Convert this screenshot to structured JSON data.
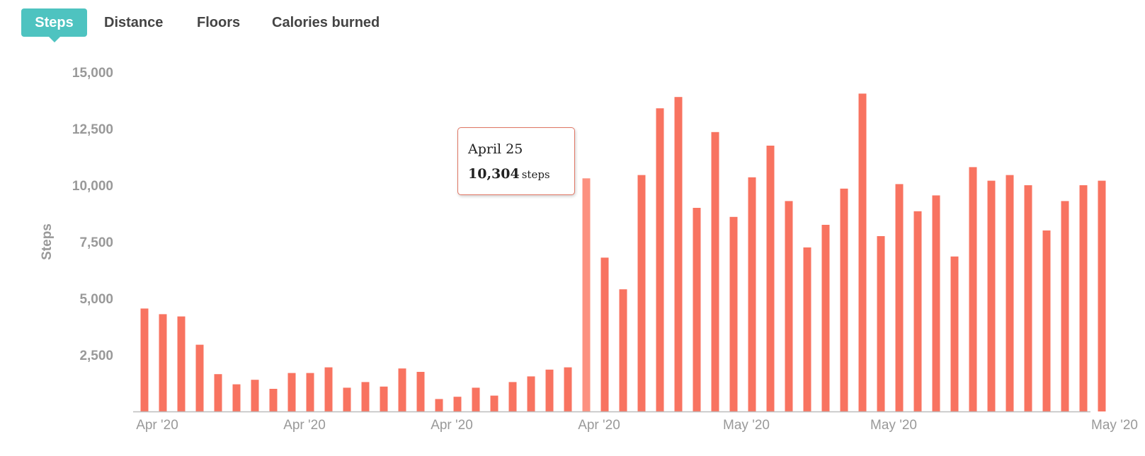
{
  "tabs": [
    {
      "label": "Steps",
      "active": true
    },
    {
      "label": "Distance",
      "active": false
    },
    {
      "label": "Floors",
      "active": false
    },
    {
      "label": "Calories burned",
      "active": false
    }
  ],
  "tooltip": {
    "date": "April 25",
    "value": "10,304",
    "unit": "steps"
  },
  "colors": {
    "bar": "#f87360",
    "bar_highlight": "#fc9180",
    "accent": "#4ec3c0",
    "axis_text": "#999999"
  },
  "chart_data": {
    "type": "bar",
    "ylabel": "Steps",
    "xlabel": "",
    "ylim": [
      0,
      15000
    ],
    "y_ticks": [
      2500,
      5000,
      7500,
      10000,
      12500,
      15000
    ],
    "y_tick_labels": [
      "2,500",
      "5,000",
      "7,500",
      "10,000",
      "12,500",
      "15,000"
    ],
    "x_tick_labels": [
      {
        "label": "Apr '20",
        "index": 0
      },
      {
        "label": "Apr '20",
        "index": 8
      },
      {
        "label": "Apr '20",
        "index": 16
      },
      {
        "label": "Apr '20",
        "index": 24
      },
      {
        "label": "May '20",
        "index": 32
      },
      {
        "label": "May '20",
        "index": 40
      },
      {
        "label": "May '20",
        "index": 52
      }
    ],
    "highlight_index": 24,
    "values": [
      4550,
      4300,
      4200,
      2950,
      1650,
      1200,
      1400,
      1000,
      1700,
      1700,
      1950,
      1050,
      1300,
      1100,
      1900,
      1750,
      550,
      650,
      1050,
      700,
      1300,
      1550,
      1850,
      1950,
      10304,
      6800,
      5400,
      10450,
      13400,
      13900,
      9000,
      12350,
      8600,
      10350,
      11750,
      9300,
      7250,
      8250,
      9850,
      14050,
      7750,
      10050,
      8850,
      9550,
      6850,
      10800,
      10200,
      10450,
      10000,
      8000,
      9300,
      10000,
      10200
    ]
  }
}
